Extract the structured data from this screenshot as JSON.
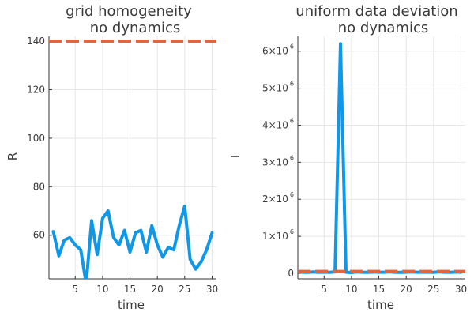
{
  "chart_data": [
    {
      "type": "line",
      "title": "grid homogeneity",
      "subtitle": "no dynamics",
      "xlabel": "time",
      "ylabel": "R",
      "xlim": [
        0.2,
        30.8
      ],
      "ylim": [
        42,
        142
      ],
      "xticks": [
        5,
        10,
        15,
        20,
        25,
        30
      ],
      "yticks": [
        60,
        80,
        100,
        120,
        140
      ],
      "grid": true,
      "legend": "none",
      "series": [
        {
          "color": "#0f97e8",
          "style": "solid",
          "x": [
            1,
            2,
            3,
            4,
            5,
            6,
            7,
            8,
            9,
            10,
            11,
            12,
            13,
            14,
            15,
            16,
            17,
            18,
            19,
            20,
            21,
            22,
            23,
            24,
            25,
            26,
            27,
            28,
            29,
            30
          ],
          "y": [
            61.5,
            51.5,
            58,
            59,
            56,
            54,
            40,
            66,
            52,
            67,
            70,
            59,
            56,
            62,
            53,
            61,
            62,
            53,
            64,
            56,
            51,
            55,
            54,
            64,
            72,
            50,
            46,
            49,
            54,
            61
          ]
        },
        {
          "color": "#e0663f",
          "style": "dash",
          "x": [
            0.2,
            30.8
          ],
          "y": [
            140,
            140
          ]
        }
      ]
    },
    {
      "type": "line",
      "title": "uniform data deviation",
      "subtitle": "no dynamics",
      "xlabel": "time",
      "ylabel": "I",
      "xlim": [
        0.2,
        30.8
      ],
      "ylim": [
        -150000,
        6400000
      ],
      "xticks": [
        5,
        10,
        15,
        20,
        25,
        30
      ],
      "yticks": [
        0,
        1000000,
        2000000,
        3000000,
        4000000,
        5000000,
        6000000
      ],
      "ytick_labels": [
        {
          "base": "0",
          "exp": ""
        },
        {
          "base": "1×10",
          "exp": "6"
        },
        {
          "base": "2×10",
          "exp": "6"
        },
        {
          "base": "3×10",
          "exp": "6"
        },
        {
          "base": "4×10",
          "exp": "6"
        },
        {
          "base": "5×10",
          "exp": "6"
        },
        {
          "base": "6×10",
          "exp": "6"
        }
      ],
      "grid": true,
      "legend": "none",
      "series": [
        {
          "color": "#0f97e8",
          "style": "solid",
          "x": [
            1,
            2,
            3,
            4,
            5,
            6,
            7,
            8,
            9,
            10,
            11,
            12,
            13,
            14,
            15,
            16,
            17,
            18,
            19,
            20,
            21,
            22,
            23,
            24,
            25,
            26,
            27,
            28,
            29,
            30
          ],
          "y": [
            30000,
            25000,
            35000,
            28000,
            32000,
            26000,
            40000,
            6200000,
            30000,
            20000,
            35000,
            30000,
            25000,
            33000,
            29000,
            30000,
            40000,
            28000,
            25000,
            30000,
            35000,
            29000,
            31000,
            30000,
            25000,
            40000,
            30000,
            28000,
            33000,
            30000
          ]
        },
        {
          "color": "#e0663f",
          "style": "dash",
          "x": [
            0.2,
            30.8
          ],
          "y": [
            50000,
            50000
          ]
        }
      ]
    }
  ]
}
